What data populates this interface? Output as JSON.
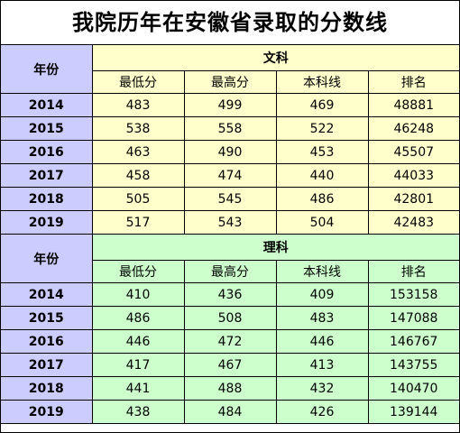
{
  "title": "我院历年在安徽省录取的分数线",
  "sections": [
    {
      "name": "文科",
      "year_header": "年份",
      "columns": [
        "最低分",
        "最高分",
        "本科线",
        "排名"
      ],
      "rows": [
        {
          "year": "2014",
          "values": [
            "483",
            "499",
            "469",
            "48881"
          ]
        },
        {
          "year": "2015",
          "values": [
            "538",
            "558",
            "522",
            "46248"
          ]
        },
        {
          "year": "2016",
          "values": [
            "463",
            "490",
            "453",
            "45507"
          ]
        },
        {
          "year": "2017",
          "values": [
            "458",
            "474",
            "440",
            "44033"
          ]
        },
        {
          "year": "2018",
          "values": [
            "505",
            "545",
            "486",
            "42801"
          ]
        },
        {
          "year": "2019",
          "values": [
            "517",
            "543",
            "504",
            "42483"
          ]
        }
      ]
    },
    {
      "name": "理科",
      "year_header": "年份",
      "columns": [
        "最低分",
        "最高分",
        "本科线",
        "排名"
      ],
      "rows": [
        {
          "year": "2014",
          "values": [
            "410",
            "436",
            "409",
            "153158"
          ]
        },
        {
          "year": "2015",
          "values": [
            "486",
            "508",
            "483",
            "147088"
          ]
        },
        {
          "year": "2016",
          "values": [
            "446",
            "472",
            "446",
            "146767"
          ]
        },
        {
          "year": "2017",
          "values": [
            "417",
            "467",
            "413",
            "143755"
          ]
        },
        {
          "year": "2018",
          "values": [
            "441",
            "488",
            "432",
            "140470"
          ]
        },
        {
          "year": "2019",
          "values": [
            "438",
            "484",
            "426",
            "139144"
          ]
        }
      ]
    }
  ],
  "colors": {
    "year_column": "#ccccff",
    "wenke_fill": "#ffffcc",
    "like_fill": "#ccffcc"
  }
}
